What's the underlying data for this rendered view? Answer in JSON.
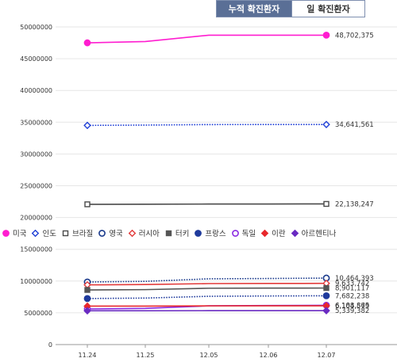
{
  "tabs": [
    {
      "label": "누적 확진환자",
      "active": true
    },
    {
      "label": "일 확진환자",
      "active": false
    }
  ],
  "chart_data": {
    "type": "line",
    "categories": [
      "11.24",
      "11.25",
      "12.05",
      "12.06",
      "12.07"
    ],
    "ylim": [
      0,
      50000000
    ],
    "yticks": [
      0,
      5000000,
      10000000,
      15000000,
      20000000,
      25000000,
      30000000,
      35000000,
      40000000,
      45000000,
      50000000
    ],
    "grid": true,
    "legend_position": "middle",
    "series": [
      {
        "name": "미국",
        "color": "#ff1dd0",
        "marker": "filled-circle",
        "dash": "solid",
        "values": [
          47500000,
          47700000,
          48700000,
          48700000,
          48702375
        ],
        "end_label": "48,702,375"
      },
      {
        "name": "인도",
        "color": "#1f3fd6",
        "marker": "open-diamond",
        "dash": "dotted",
        "values": [
          34500000,
          34550000,
          34630000,
          34635000,
          34641561
        ],
        "end_label": "34,641,561"
      },
      {
        "name": "브라질",
        "color": "#4a4a4a",
        "marker": "open-square",
        "dash": "solid",
        "values": [
          22080000,
          22090000,
          22120000,
          22130000,
          22138247
        ],
        "end_label": "22,138,247"
      },
      {
        "name": "영국",
        "color": "#1a3a8c",
        "marker": "open-circle",
        "dash": "dotted",
        "values": [
          9850000,
          9950000,
          10350000,
          10400000,
          10464393
        ],
        "end_label": "10,464,393"
      },
      {
        "name": "러시아",
        "color": "#e23a3a",
        "marker": "open-diamond",
        "dash": "solid",
        "values": [
          9400000,
          9450000,
          9600000,
          9620000,
          9633742
        ],
        "end_label": "9,633,742"
      },
      {
        "name": "터키",
        "color": "#555555",
        "marker": "filled-square",
        "dash": "solid",
        "values": [
          8600000,
          8650000,
          8870000,
          8890000,
          8901117
        ],
        "end_label": "8,901,117"
      },
      {
        "name": "프랑스",
        "color": "#1f3a9c",
        "marker": "filled-circle",
        "dash": "dotted",
        "values": [
          7250000,
          7320000,
          7600000,
          7650000,
          7682238
        ],
        "end_label": "7,682,238"
      },
      {
        "name": "독일",
        "color": "#8a2be2",
        "marker": "open-circle",
        "dash": "solid",
        "values": [
          5600000,
          5700000,
          6100000,
          6150000,
          6188865
        ],
        "end_label": "6,188,865"
      },
      {
        "name": "이란",
        "color": "#e8282c",
        "marker": "filled-diamond",
        "dash": "solid",
        "values": [
          6050000,
          6060000,
          6095000,
          6100000,
          6104579
        ],
        "end_label": "6,104,579"
      },
      {
        "name": "아르헨티나",
        "color": "#6a2bc2",
        "marker": "filled-diamond",
        "dash": "solid",
        "values": [
          5320000,
          5322000,
          5333000,
          5336000,
          5339382
        ],
        "end_label": "5,339,382"
      }
    ]
  }
}
